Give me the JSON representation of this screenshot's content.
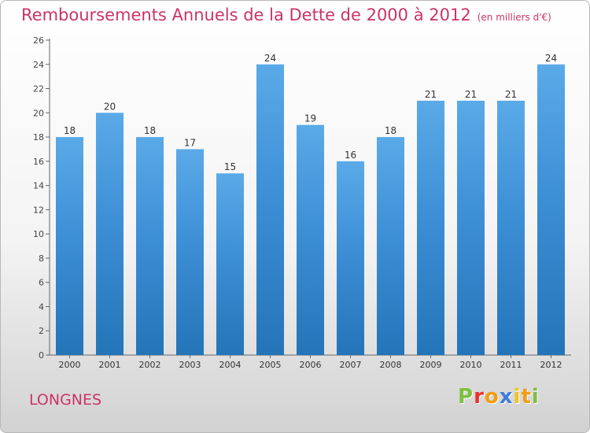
{
  "chart_data": {
    "type": "bar",
    "title": "Remboursements Annuels de la Dette de 2000 à 2012",
    "unit_note": "(en milliers d'€)",
    "categories": [
      "2000",
      "2001",
      "2002",
      "2003",
      "2004",
      "2005",
      "2006",
      "2007",
      "2008",
      "2009",
      "2010",
      "2011",
      "2012"
    ],
    "values": [
      18,
      20,
      18,
      17,
      15,
      24,
      19,
      16,
      18,
      21,
      21,
      21,
      24
    ],
    "data_labels": [
      "18",
      "20",
      "18",
      "17",
      "15",
      "24",
      "19",
      "16",
      "18",
      "21",
      "21",
      "21",
      "24"
    ],
    "y_ticks": [
      "0",
      "2",
      "4",
      "6",
      "8",
      "10",
      "12",
      "14",
      "16",
      "18",
      "20",
      "22",
      "24",
      "26"
    ],
    "ylim": [
      0,
      26
    ],
    "grid": false,
    "legend": "none",
    "bar_color": "#3d8fd6",
    "bar_color_light": "#5aaae8",
    "bar_color_dark": "#2474b8",
    "label_color": "#333333",
    "title_color": "#cc3366"
  },
  "footer": {
    "location": "LONGNES",
    "logo_text": "Proxiti",
    "logo_colors": [
      "#7fbf3f",
      "#e8322c",
      "#f39c12",
      "#3b7dd8",
      "#f0c419",
      "#f39c12",
      "#7fbf3f"
    ]
  }
}
